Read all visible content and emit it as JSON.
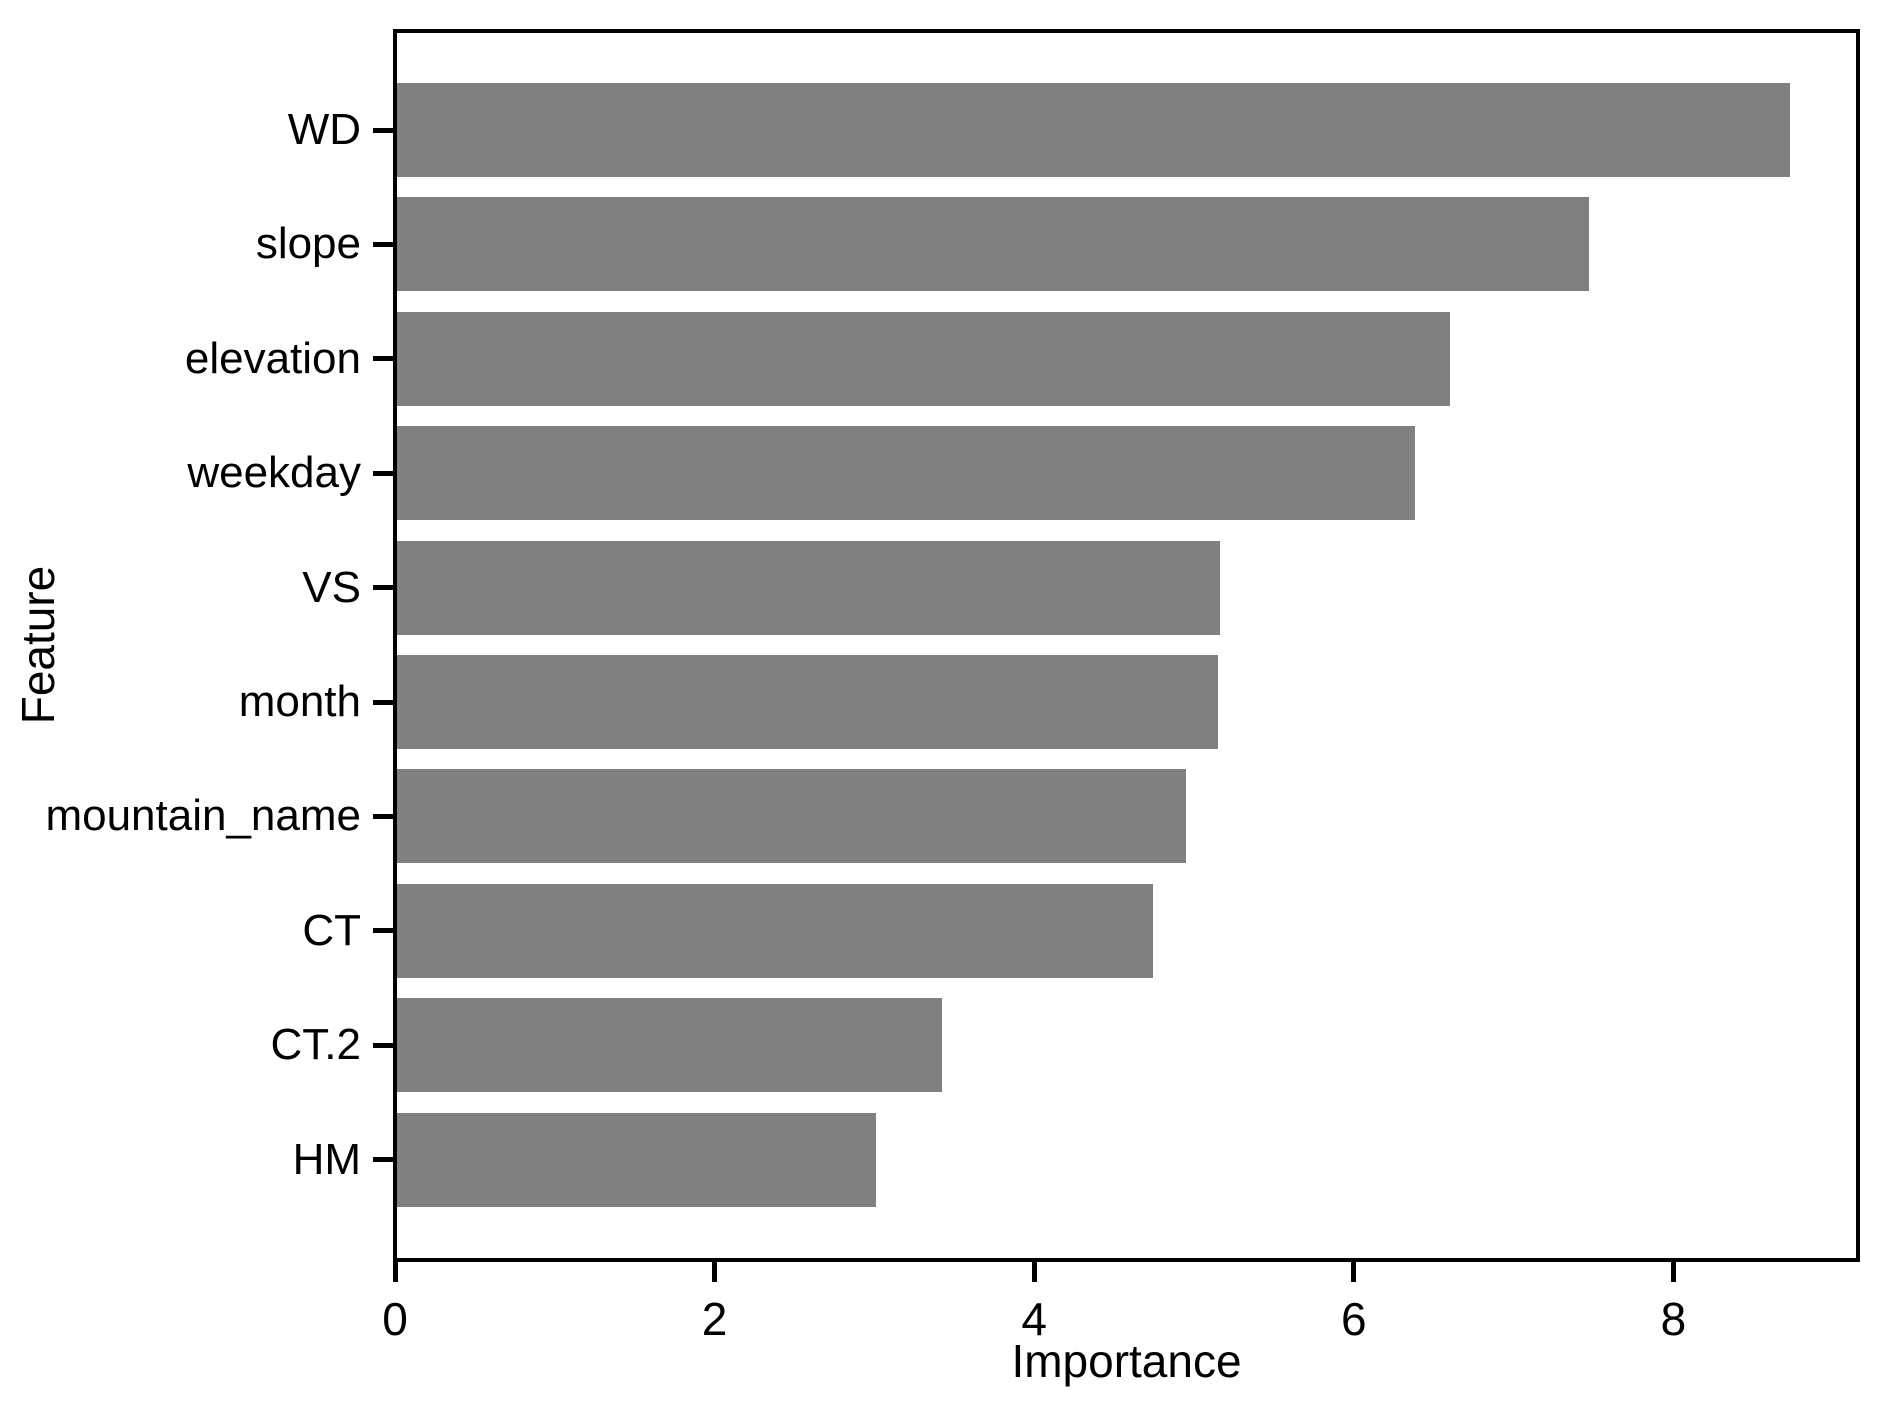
{
  "figure": {
    "background_color": "#ffffff"
  },
  "chart_data": {
    "type": "bar",
    "orientation": "horizontal",
    "title": "",
    "xlabel": "Importance",
    "ylabel": "Feature",
    "categories": [
      "WD",
      "slope",
      "elevation",
      "weekday",
      "VS",
      "month",
      "mountain_name",
      "CT",
      "CT.2",
      "HM"
    ],
    "values": [
      8.72,
      7.46,
      6.59,
      6.37,
      5.15,
      5.14,
      4.94,
      4.73,
      3.41,
      3.0
    ],
    "x_ticks": [
      0,
      2,
      4,
      6,
      8
    ],
    "xlim": [
      0,
      9.13
    ],
    "grid": false,
    "legend": null,
    "bar_color": "#808080",
    "axis_color": "#000000",
    "text_color": "#000000"
  }
}
